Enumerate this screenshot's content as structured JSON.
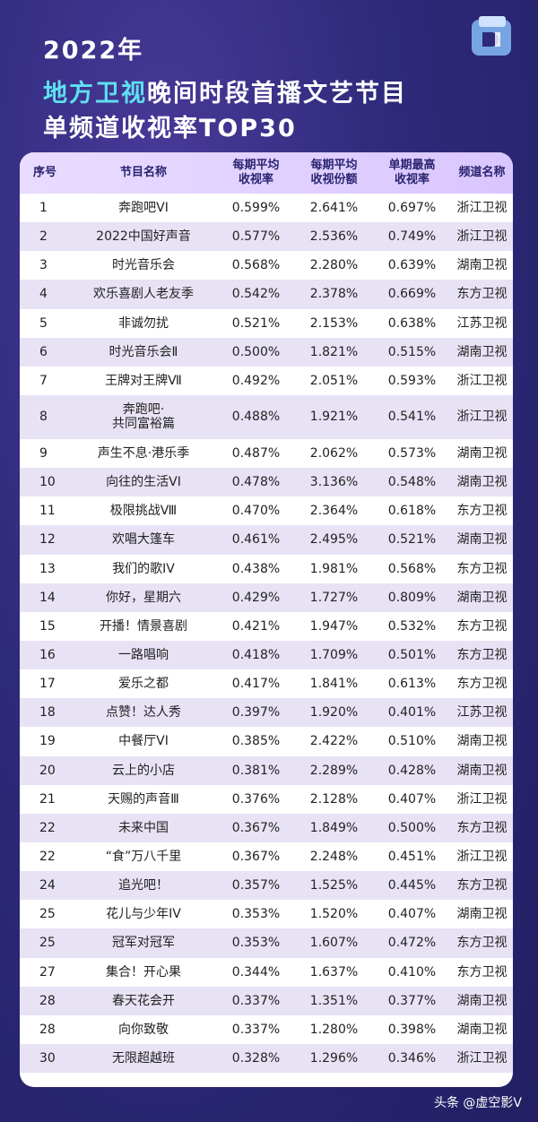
{
  "header": {
    "year": "2022年",
    "line2_accent": "地方卫视",
    "line2_rest": "晚间时段首播文艺节目",
    "line3": "单频道收视率TOP30"
  },
  "watermark": "头条 @虚空影V",
  "chart_data": {
    "type": "table",
    "columns": [
      "序号",
      "节目名称",
      "每期平均\n收视率",
      "每期平均\n收视份额",
      "单期最高\n收视率",
      "频道名称"
    ],
    "rows": [
      [
        "1",
        "奔跑吧VI",
        "0.599%",
        "2.641%",
        "0.697%",
        "浙江卫视"
      ],
      [
        "2",
        "2022中国好声音",
        "0.577%",
        "2.536%",
        "0.749%",
        "浙江卫视"
      ],
      [
        "3",
        "时光音乐会",
        "0.568%",
        "2.280%",
        "0.639%",
        "湖南卫视"
      ],
      [
        "4",
        "欢乐喜剧人老友季",
        "0.542%",
        "2.378%",
        "0.669%",
        "东方卫视"
      ],
      [
        "5",
        "非诚勿扰",
        "0.521%",
        "2.153%",
        "0.638%",
        "江苏卫视"
      ],
      [
        "6",
        "时光音乐会Ⅱ",
        "0.500%",
        "1.821%",
        "0.515%",
        "湖南卫视"
      ],
      [
        "7",
        "王牌对王牌Ⅶ",
        "0.492%",
        "2.051%",
        "0.593%",
        "浙江卫视"
      ],
      [
        "8",
        "奔跑吧·\n共同富裕篇",
        "0.488%",
        "1.921%",
        "0.541%",
        "浙江卫视"
      ],
      [
        "9",
        "声生不息·港乐季",
        "0.487%",
        "2.062%",
        "0.573%",
        "湖南卫视"
      ],
      [
        "10",
        "向往的生活VI",
        "0.478%",
        "3.136%",
        "0.548%",
        "湖南卫视"
      ],
      [
        "11",
        "极限挑战Ⅷ",
        "0.470%",
        "2.364%",
        "0.618%",
        "东方卫视"
      ],
      [
        "12",
        "欢唱大篷车",
        "0.461%",
        "2.495%",
        "0.521%",
        "湖南卫视"
      ],
      [
        "13",
        "我们的歌IV",
        "0.438%",
        "1.981%",
        "0.568%",
        "东方卫视"
      ],
      [
        "14",
        "你好，星期六",
        "0.429%",
        "1.727%",
        "0.809%",
        "湖南卫视"
      ],
      [
        "15",
        "开播！情景喜剧",
        "0.421%",
        "1.947%",
        "0.532%",
        "东方卫视"
      ],
      [
        "16",
        "一路唱响",
        "0.418%",
        "1.709%",
        "0.501%",
        "东方卫视"
      ],
      [
        "17",
        "爱乐之都",
        "0.417%",
        "1.841%",
        "0.613%",
        "东方卫视"
      ],
      [
        "18",
        "点赞！达人秀",
        "0.397%",
        "1.920%",
        "0.401%",
        "江苏卫视"
      ],
      [
        "19",
        "中餐厅VI",
        "0.385%",
        "2.422%",
        "0.510%",
        "湖南卫视"
      ],
      [
        "20",
        "云上的小店",
        "0.381%",
        "2.289%",
        "0.428%",
        "湖南卫视"
      ],
      [
        "21",
        "天赐的声音Ⅲ",
        "0.376%",
        "2.128%",
        "0.407%",
        "浙江卫视"
      ],
      [
        "22",
        "未来中国",
        "0.367%",
        "1.849%",
        "0.500%",
        "东方卫视"
      ],
      [
        "22",
        "“食”万八千里",
        "0.367%",
        "2.248%",
        "0.451%",
        "浙江卫视"
      ],
      [
        "24",
        "追光吧！",
        "0.357%",
        "1.525%",
        "0.445%",
        "东方卫视"
      ],
      [
        "25",
        "花儿与少年IV",
        "0.353%",
        "1.520%",
        "0.407%",
        "湖南卫视"
      ],
      [
        "25",
        "冠军对冠军",
        "0.353%",
        "1.607%",
        "0.472%",
        "东方卫视"
      ],
      [
        "27",
        "集合！开心果",
        "0.344%",
        "1.637%",
        "0.410%",
        "东方卫视"
      ],
      [
        "28",
        "春天花会开",
        "0.337%",
        "1.351%",
        "0.377%",
        "湖南卫视"
      ],
      [
        "28",
        "向你致敬",
        "0.337%",
        "1.280%",
        "0.398%",
        "湖南卫视"
      ],
      [
        "30",
        "无限超越班",
        "0.328%",
        "1.296%",
        "0.346%",
        "浙江卫视"
      ]
    ]
  }
}
